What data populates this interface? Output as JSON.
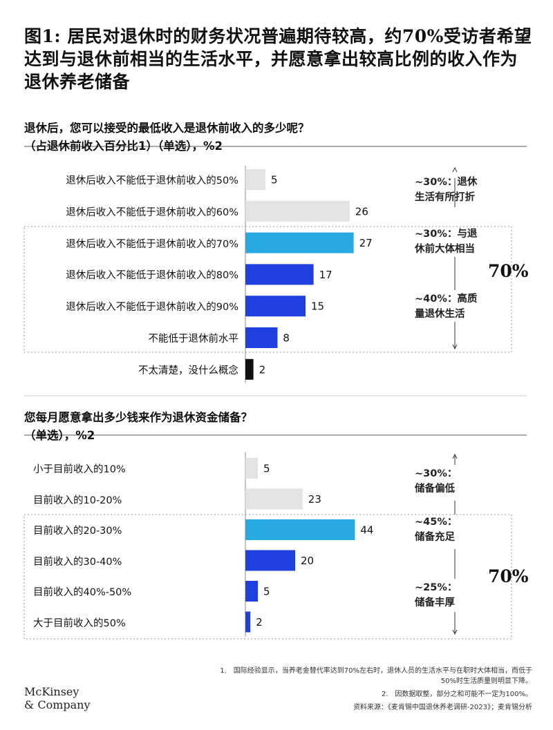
{
  "title": "图1: 居民对退休时的财务状况普遍期待较高，约70%受访者希望达到与退休前相当的生活水平，并愿意拿出较高比例的收入作为退休养老储备",
  "chart_data": [
    {
      "type": "bar",
      "orientation": "horizontal",
      "title": "退休后，您可以接受的最低收入是退休前收入的多少呢？",
      "subtitle": "（占退休前收入百分比1）（单选），%2",
      "categories": [
        "退休后收入不能低于退休前收入的50%",
        "退休后收入不能低于退休前收入的60%",
        "退休后收入不能低于退休前收入的70%",
        "退休后收入不能低于退休前收入的80%",
        "退休后收入不能低于退休前收入的90%",
        "不能低于退休前水平",
        "不太清楚，没什么概念"
      ],
      "values": [
        5,
        26,
        27,
        17,
        15,
        8,
        2
      ],
      "colors": [
        "#e3e3e3",
        "#e3e3e3",
        "#29a9e1",
        "#1f3fe0",
        "#1f3fe0",
        "#1f3fe0",
        "#111111"
      ],
      "annotations": [
        "~30%：退休生活有所打折",
        "~30%：与退休前大体相当",
        "~40%：高质量退休生活",
        "70%"
      ]
    },
    {
      "type": "bar",
      "orientation": "horizontal",
      "title": "您每月愿意拿出多少钱来作为退休资金储备？",
      "subtitle": "（单选），%2",
      "categories": [
        "小于目前收入的10%",
        "目前收入的10-20%",
        "目前收入的20-30%",
        "目前收入的30-40%",
        "目前收入的40%-50%",
        "大于目前收入的50%"
      ],
      "values": [
        5,
        23,
        44,
        20,
        5,
        2
      ],
      "colors": [
        "#e3e3e3",
        "#e3e3e3",
        "#29a9e1",
        "#1f3fe0",
        "#1f3fe0",
        "#1f3fe0"
      ],
      "annotations": [
        "~30%：储备偏低",
        "~45%：储备充足",
        "~25%：储备丰厚",
        "70%"
      ]
    }
  ],
  "footnotes": [
    "1.　国际经验显示，当养老金替代率达到70%左右时，退休人员的生活水平与在职时大体相当，而低于50%时生活质量则明显下降。",
    "2.　因数据取整，部分之和可能不一定为100%。"
  ],
  "source": "资料来源：《麦肯锡中国退休养老调研-2023》；麦肯锡分析",
  "logo": [
    "McKinsey",
    "& Company"
  ]
}
